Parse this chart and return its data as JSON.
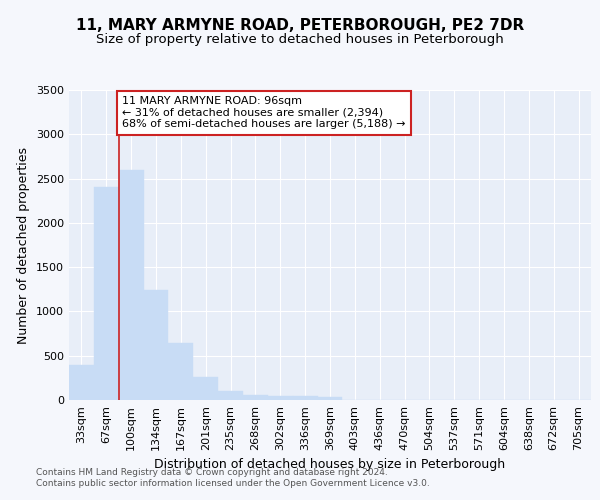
{
  "title": "11, MARY ARMYNE ROAD, PETERBOROUGH, PE2 7DR",
  "subtitle": "Size of property relative to detached houses in Peterborough",
  "xlabel": "Distribution of detached houses by size in Peterborough",
  "ylabel": "Number of detached properties",
  "categories": [
    "33sqm",
    "67sqm",
    "100sqm",
    "134sqm",
    "167sqm",
    "201sqm",
    "235sqm",
    "268sqm",
    "302sqm",
    "336sqm",
    "369sqm",
    "403sqm",
    "436sqm",
    "470sqm",
    "504sqm",
    "537sqm",
    "571sqm",
    "604sqm",
    "638sqm",
    "672sqm",
    "705sqm"
  ],
  "values": [
    390,
    2400,
    2600,
    1240,
    640,
    260,
    100,
    55,
    45,
    40,
    30,
    0,
    0,
    0,
    0,
    0,
    0,
    0,
    0,
    0,
    0
  ],
  "bar_color": "#c8dcf5",
  "bar_edge_color": "#c8dcf5",
  "annotation_line": "11 MARY ARMYNE ROAD: 96sqm",
  "annotation_line2": "← 31% of detached houses are smaller (2,394)",
  "annotation_line3": "68% of semi-detached houses are larger (5,188) →",
  "annotation_box_color": "#ffffff",
  "annotation_box_edge_color": "#cc2222",
  "line_color": "#cc2222",
  "line_x_index": 2,
  "ylim": [
    0,
    3500
  ],
  "yticks": [
    0,
    500,
    1000,
    1500,
    2000,
    2500,
    3000,
    3500
  ],
  "footer_line1": "Contains HM Land Registry data © Crown copyright and database right 2024.",
  "footer_line2": "Contains public sector information licensed under the Open Government Licence v3.0.",
  "bg_color": "#f5f7fc",
  "plot_bg_color": "#e8eef8",
  "grid_color": "#ffffff",
  "title_fontsize": 11,
  "subtitle_fontsize": 9.5,
  "tick_fontsize": 8,
  "ylabel_fontsize": 9,
  "xlabel_fontsize": 9,
  "footer_fontsize": 6.5,
  "annotation_fontsize": 8
}
